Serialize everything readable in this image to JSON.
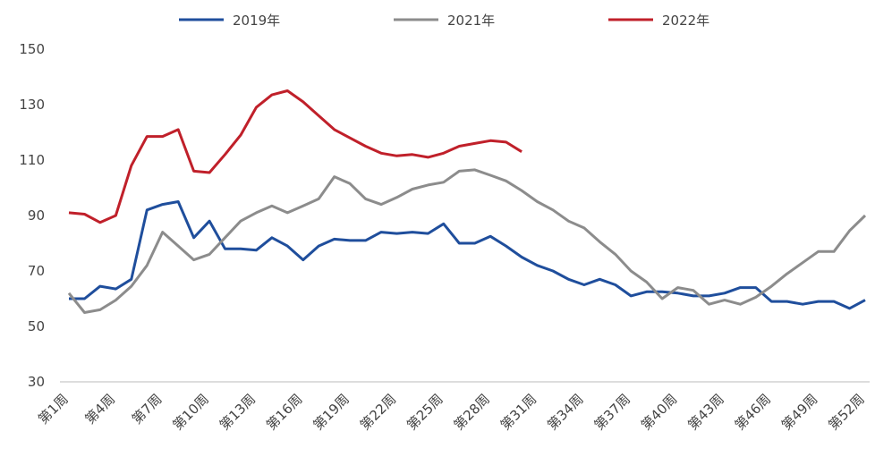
{
  "chart_data": {
    "type": "line",
    "categories": [
      "第1周",
      null,
      null,
      "第4周",
      null,
      null,
      "第7周",
      null,
      null,
      "第10周",
      null,
      null,
      "第13周",
      null,
      null,
      "第16周",
      null,
      null,
      "第19周",
      null,
      null,
      "第22周",
      null,
      null,
      "第25周",
      null,
      null,
      "第28周",
      null,
      null,
      "第31周",
      null,
      null,
      "第34周",
      null,
      null,
      "第37周",
      null,
      null,
      "第40周",
      null,
      null,
      "第43周",
      null,
      null,
      "第46周",
      null,
      null,
      "第49周",
      null,
      null,
      "第52周"
    ],
    "series": [
      {
        "name": "2019年",
        "color": "#1f4e9c",
        "values": [
          60,
          60,
          64.5,
          63.5,
          67,
          92,
          94,
          95,
          82,
          88,
          78,
          78,
          77.5,
          82,
          79,
          74,
          79,
          81.5,
          81,
          81,
          84,
          83.5,
          84,
          83.5,
          87,
          80,
          80,
          82.5,
          79,
          75,
          72,
          70,
          67,
          65,
          67,
          65,
          61,
          62.5,
          62.5,
          62,
          61,
          61,
          62,
          64,
          64,
          59,
          59,
          58,
          59,
          59,
          56.5,
          59.5
        ]
      },
      {
        "name": "2021年",
        "color": "#8c8c8c",
        "values": [
          62,
          55,
          56,
          59.5,
          64.5,
          72,
          84,
          79,
          74,
          76,
          82,
          88,
          91,
          93.5,
          91,
          93.5,
          96,
          104,
          101.5,
          96,
          94,
          96.5,
          99.5,
          101,
          102,
          106,
          106.5,
          104.5,
          102.5,
          99,
          95,
          92,
          88,
          85.5,
          80.5,
          76,
          70,
          66,
          60,
          64,
          63,
          58,
          59.5,
          58,
          60.5,
          64.5,
          69,
          73,
          77,
          77,
          84.5,
          90
        ]
      },
      {
        "name": "2022年",
        "color": "#c0202a",
        "values": [
          91,
          90.5,
          87.5,
          90,
          108,
          118.5,
          118.5,
          121,
          106,
          105.5,
          112,
          119,
          129,
          133.5,
          135,
          131,
          126,
          121,
          118,
          115,
          112.5,
          111.5,
          112,
          111,
          112.5,
          115,
          116,
          117,
          116.5,
          113,
          null,
          null,
          null,
          null,
          null,
          null,
          null,
          null,
          null,
          null,
          null,
          null,
          null,
          null,
          null,
          null,
          null,
          null,
          null,
          null,
          null,
          null
        ]
      }
    ],
    "ylim": [
      30,
      150
    ],
    "yticks": [
      30,
      50,
      70,
      90,
      110,
      130,
      150
    ]
  }
}
